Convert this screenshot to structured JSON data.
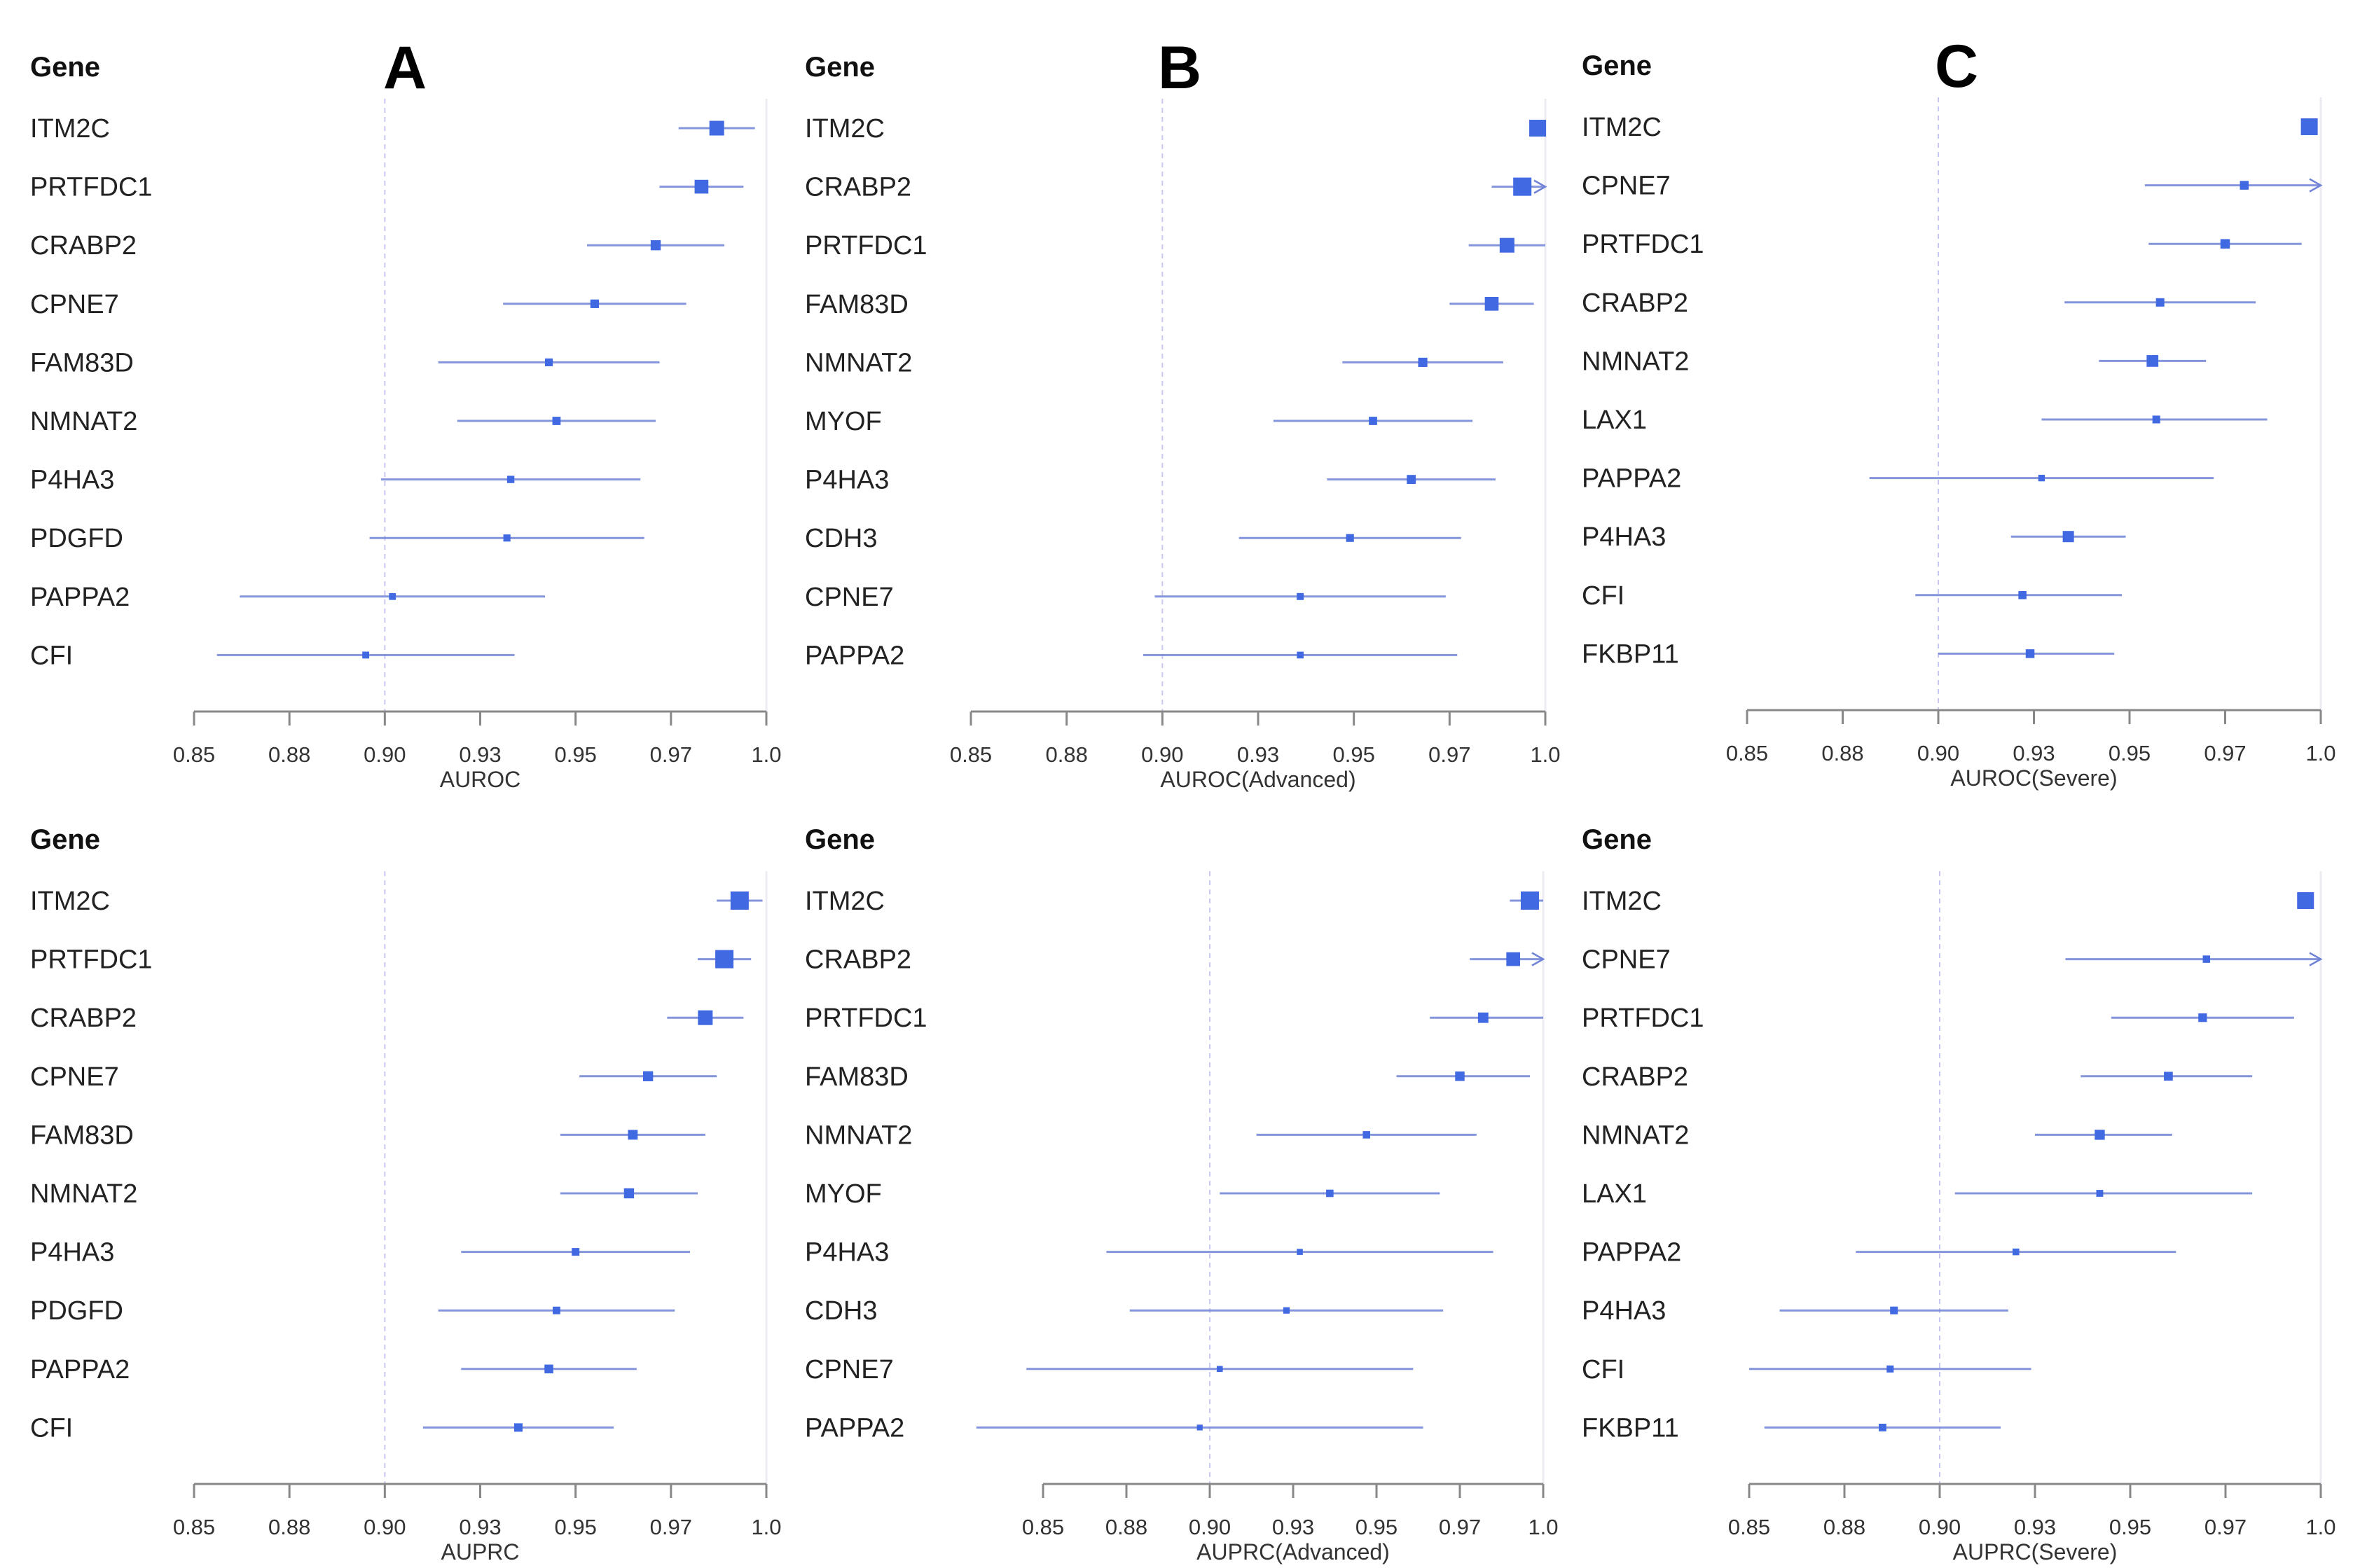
{
  "colors": {
    "box": "#4169e1",
    "ci": "#6f82d6",
    "axis": "#888888",
    "ref_line": "#c9c9f0"
  },
  "chart_data": [
    {
      "type": "forest",
      "panel_label": "A",
      "column_header": "Gene",
      "xlabel": "AUROC",
      "tick_values": [
        0.85,
        0.875,
        0.9,
        0.925,
        0.95,
        0.975,
        1.0
      ],
      "tick_labels": [
        "0.85",
        "0.88",
        "0.90",
        "0.93",
        "0.95",
        "0.97",
        "1.0"
      ],
      "reference_line": 0.9,
      "rows": [
        {
          "gene": "ITM2C",
          "est": 0.987,
          "lo": 0.977,
          "hi": 0.997
        },
        {
          "gene": "PRTFDC1",
          "est": 0.983,
          "lo": 0.972,
          "hi": 0.994
        },
        {
          "gene": "CRABP2",
          "est": 0.971,
          "lo": 0.953,
          "hi": 0.989
        },
        {
          "gene": "CPNE7",
          "est": 0.955,
          "lo": 0.931,
          "hi": 0.979
        },
        {
          "gene": "FAM83D",
          "est": 0.943,
          "lo": 0.914,
          "hi": 0.972
        },
        {
          "gene": "NMNAT2",
          "est": 0.945,
          "lo": 0.919,
          "hi": 0.971
        },
        {
          "gene": "P4HA3",
          "est": 0.933,
          "lo": 0.899,
          "hi": 0.967
        },
        {
          "gene": "PDGFD",
          "est": 0.932,
          "lo": 0.896,
          "hi": 0.968
        },
        {
          "gene": "PAPPA2",
          "est": 0.902,
          "lo": 0.862,
          "hi": 0.942
        },
        {
          "gene": "CFI",
          "est": 0.895,
          "lo": 0.856,
          "hi": 0.934
        }
      ]
    },
    {
      "type": "forest",
      "panel_label": "B",
      "column_header": "Gene",
      "xlabel": "AUROC(Advanced)",
      "tick_values": [
        0.85,
        0.875,
        0.9,
        0.925,
        0.95,
        0.975,
        1.0
      ],
      "tick_labels": [
        "0.85",
        "0.88",
        "0.90",
        "0.93",
        "0.95",
        "0.97",
        "1.0"
      ],
      "reference_line": 0.9,
      "rows": [
        {
          "gene": "ITM2C",
          "est": 0.998,
          "lo": null,
          "hi": null
        },
        {
          "gene": "CRABP2",
          "est": 0.994,
          "lo": 0.986,
          "hi": 1.0,
          "hi_exceeds_axis": true
        },
        {
          "gene": "PRTFDC1",
          "est": 0.99,
          "lo": 0.98,
          "hi": 1.0
        },
        {
          "gene": "FAM83D",
          "est": 0.986,
          "lo": 0.975,
          "hi": 0.997
        },
        {
          "gene": "NMNAT2",
          "est": 0.968,
          "lo": 0.947,
          "hi": 0.989
        },
        {
          "gene": "MYOF",
          "est": 0.955,
          "lo": 0.929,
          "hi": 0.981
        },
        {
          "gene": "P4HA3",
          "est": 0.965,
          "lo": 0.943,
          "hi": 0.987
        },
        {
          "gene": "CDH3",
          "est": 0.949,
          "lo": 0.92,
          "hi": 0.978
        },
        {
          "gene": "CPNE7",
          "est": 0.936,
          "lo": 0.898,
          "hi": 0.974
        },
        {
          "gene": "PAPPA2",
          "est": 0.936,
          "lo": 0.895,
          "hi": 0.977
        }
      ]
    },
    {
      "type": "forest",
      "panel_label": "C",
      "column_header": "Gene",
      "xlabel": "AUROC(Severe)",
      "tick_values": [
        0.85,
        0.875,
        0.9,
        0.925,
        0.95,
        0.975,
        1.0
      ],
      "tick_labels": [
        "0.85",
        "0.88",
        "0.90",
        "0.93",
        "0.95",
        "0.97",
        "1.0"
      ],
      "reference_line": 0.9,
      "rows": [
        {
          "gene": "ITM2C",
          "est": 0.997,
          "lo": null,
          "hi": null
        },
        {
          "gene": "CPNE7",
          "est": 0.98,
          "lo": 0.954,
          "hi": 1.0,
          "hi_exceeds_axis": true
        },
        {
          "gene": "PRTFDC1",
          "est": 0.975,
          "lo": 0.955,
          "hi": 0.995
        },
        {
          "gene": "CRABP2",
          "est": 0.958,
          "lo": 0.933,
          "hi": 0.983
        },
        {
          "gene": "NMNAT2",
          "est": 0.956,
          "lo": 0.942,
          "hi": 0.97
        },
        {
          "gene": "LAX1",
          "est": 0.957,
          "lo": 0.927,
          "hi": 0.986
        },
        {
          "gene": "PAPPA2",
          "est": 0.927,
          "lo": 0.882,
          "hi": 0.972
        },
        {
          "gene": "P4HA3",
          "est": 0.934,
          "lo": 0.919,
          "hi": 0.949
        },
        {
          "gene": "CFI",
          "est": 0.922,
          "lo": 0.894,
          "hi": 0.948
        },
        {
          "gene": "FKBP11",
          "est": 0.924,
          "lo": 0.9,
          "hi": 0.946
        }
      ]
    },
    {
      "type": "forest",
      "panel_label": "",
      "column_header": "Gene",
      "xlabel": "AUPRC",
      "tick_values": [
        0.85,
        0.875,
        0.9,
        0.925,
        0.95,
        0.975,
        1.0
      ],
      "tick_labels": [
        "0.85",
        "0.88",
        "0.90",
        "0.93",
        "0.95",
        "0.97",
        "1.0"
      ],
      "reference_line": 0.9,
      "rows": [
        {
          "gene": "ITM2C",
          "est": 0.993,
          "lo": 0.987,
          "hi": 0.999
        },
        {
          "gene": "PRTFDC1",
          "est": 0.989,
          "lo": 0.982,
          "hi": 0.996
        },
        {
          "gene": "CRABP2",
          "est": 0.984,
          "lo": 0.974,
          "hi": 0.994
        },
        {
          "gene": "CPNE7",
          "est": 0.969,
          "lo": 0.951,
          "hi": 0.987
        },
        {
          "gene": "FAM83D",
          "est": 0.965,
          "lo": 0.946,
          "hi": 0.984
        },
        {
          "gene": "NMNAT2",
          "est": 0.964,
          "lo": 0.946,
          "hi": 0.982
        },
        {
          "gene": "P4HA3",
          "est": 0.95,
          "lo": 0.92,
          "hi": 0.98
        },
        {
          "gene": "PDGFD",
          "est": 0.945,
          "lo": 0.914,
          "hi": 0.976
        },
        {
          "gene": "PAPPA2",
          "est": 0.943,
          "lo": 0.92,
          "hi": 0.966
        },
        {
          "gene": "CFI",
          "est": 0.935,
          "lo": 0.91,
          "hi": 0.96
        }
      ]
    },
    {
      "type": "forest",
      "panel_label": "",
      "column_header": "Gene",
      "xlabel": "AUPRC(Advanced)",
      "tick_values": [
        0.85,
        0.875,
        0.9,
        0.925,
        0.95,
        0.975,
        1.0
      ],
      "tick_labels": [
        "0.85",
        "0.88",
        "0.90",
        "0.93",
        "0.95",
        "0.97",
        "1.0"
      ],
      "reference_line": 0.9,
      "rows": [
        {
          "gene": "ITM2C",
          "est": 0.996,
          "lo": 0.99,
          "hi": 1.0
        },
        {
          "gene": "CRABP2",
          "est": 0.991,
          "lo": 0.978,
          "hi": 1.0,
          "hi_exceeds_axis": true
        },
        {
          "gene": "PRTFDC1",
          "est": 0.982,
          "lo": 0.966,
          "hi": 1.0
        },
        {
          "gene": "FAM83D",
          "est": 0.975,
          "lo": 0.956,
          "hi": 0.996
        },
        {
          "gene": "NMNAT2",
          "est": 0.947,
          "lo": 0.914,
          "hi": 0.98
        },
        {
          "gene": "MYOF",
          "est": 0.936,
          "lo": 0.903,
          "hi": 0.969
        },
        {
          "gene": "P4HA3",
          "est": 0.927,
          "lo": 0.869,
          "hi": 0.985
        },
        {
          "gene": "CDH3",
          "est": 0.923,
          "lo": 0.876,
          "hi": 0.97
        },
        {
          "gene": "CPNE7",
          "est": 0.903,
          "lo": 0.845,
          "hi": 0.961
        },
        {
          "gene": "PAPPA2",
          "est": 0.897,
          "lo": 0.83,
          "hi": 0.964
        }
      ]
    },
    {
      "type": "forest",
      "panel_label": "",
      "column_header": "Gene",
      "xlabel": "AUPRC(Severe)",
      "tick_values": [
        0.85,
        0.875,
        0.9,
        0.925,
        0.95,
        0.975,
        1.0
      ],
      "tick_labels": [
        "0.85",
        "0.88",
        "0.90",
        "0.93",
        "0.95",
        "0.97",
        "1.0"
      ],
      "reference_line": 0.9,
      "rows": [
        {
          "gene": "ITM2C",
          "est": 0.996,
          "lo": null,
          "hi": null
        },
        {
          "gene": "CPNE7",
          "est": 0.97,
          "lo": 0.933,
          "hi": 1.0,
          "hi_exceeds_axis": true
        },
        {
          "gene": "PRTFDC1",
          "est": 0.969,
          "lo": 0.945,
          "hi": 0.993
        },
        {
          "gene": "CRABP2",
          "est": 0.96,
          "lo": 0.937,
          "hi": 0.982
        },
        {
          "gene": "NMNAT2",
          "est": 0.942,
          "lo": 0.925,
          "hi": 0.961
        },
        {
          "gene": "LAX1",
          "est": 0.942,
          "lo": 0.904,
          "hi": 0.982
        },
        {
          "gene": "PAPPA2",
          "est": 0.92,
          "lo": 0.878,
          "hi": 0.962
        },
        {
          "gene": "P4HA3",
          "est": 0.888,
          "lo": 0.858,
          "hi": 0.918
        },
        {
          "gene": "CFI",
          "est": 0.887,
          "lo": 0.85,
          "hi": 0.924
        },
        {
          "gene": "FKBP11",
          "est": 0.885,
          "lo": 0.854,
          "hi": 0.916
        }
      ]
    }
  ]
}
